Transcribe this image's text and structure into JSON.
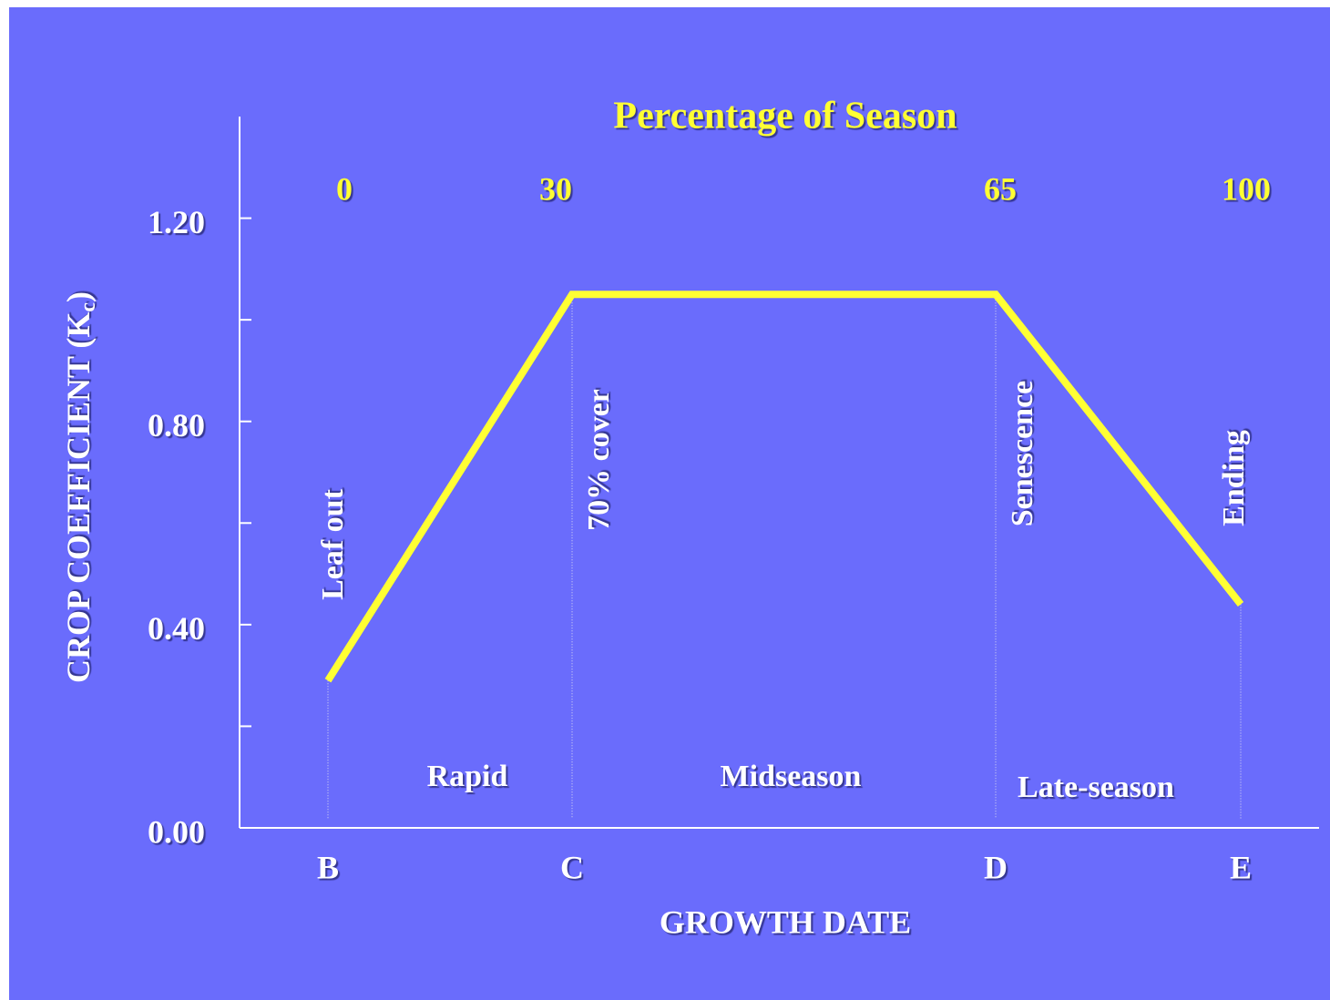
{
  "chart_data": {
    "type": "line",
    "title": "Percentage of Season",
    "top_labels": [
      0,
      30,
      65,
      100
    ],
    "categories": [
      "B",
      "C",
      "D",
      "E"
    ],
    "values": [
      0.29,
      1.05,
      1.05,
      0.44
    ],
    "color": "#ffff33",
    "xlabel": "GROWTH DATE",
    "ylabel": "CROP COEFFICIENT (K",
    "ylabel_sub": "c",
    "ylabel_end": ")",
    "ylim": [
      0,
      1.4
    ],
    "yticks": [
      {
        "value": 0,
        "label": "0.00"
      },
      {
        "value": 0.4,
        "label": "0.40"
      },
      {
        "value": 0.8,
        "label": "0.80"
      },
      {
        "value": 1.2,
        "label": "1.20"
      }
    ],
    "minor_yticks": [
      0.2,
      0.6,
      1.0
    ],
    "point_annotations": [
      "Leaf out",
      "70% cover",
      "Senescence",
      "Ending"
    ],
    "phase_labels": [
      "Rapid",
      "Midseason",
      "Late-season"
    ]
  }
}
